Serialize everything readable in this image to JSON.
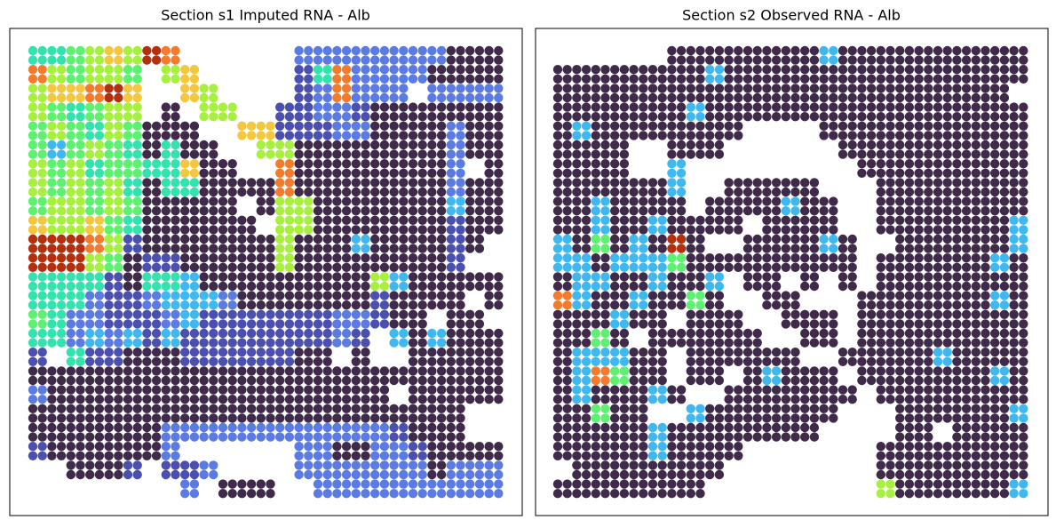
{
  "chart_data": [
    {
      "type": "scatter",
      "title": "Section s1 Imputed RNA - Alb",
      "colormap": [
        "#3f2a4a",
        "#4b4fae",
        "#5b7be3",
        "#3fb8f0",
        "#33e3ae",
        "#5ef171",
        "#a8f03f",
        "#f3c73f",
        "#f47a2c",
        "#b3300e"
      ],
      "values": [
        [
          4,
          4,
          5,
          6,
          7,
          6,
          9,
          8,
          null,
          null,
          null,
          null,
          null,
          null,
          2,
          2,
          2,
          2,
          2,
          2,
          2,
          2,
          0,
          0,
          0
        ],
        [
          8,
          6,
          5,
          6,
          6,
          5,
          null,
          6,
          7,
          null,
          null,
          null,
          null,
          null,
          1,
          4,
          8,
          2,
          2,
          2,
          2,
          0,
          0,
          0,
          0
        ],
        [
          6,
          7,
          7,
          8,
          9,
          7,
          null,
          null,
          7,
          6,
          null,
          null,
          null,
          null,
          1,
          2,
          8,
          2,
          2,
          2,
          null,
          2,
          2,
          2,
          2
        ],
        [
          6,
          5,
          4,
          5,
          6,
          6,
          null,
          0,
          null,
          6,
          6,
          null,
          null,
          1,
          1,
          2,
          2,
          1,
          0,
          0,
          0,
          0,
          0,
          0,
          0
        ],
        [
          5,
          6,
          5,
          4,
          6,
          5,
          0,
          0,
          0,
          null,
          null,
          7,
          7,
          1,
          1,
          1,
          2,
          2,
          0,
          0,
          0,
          0,
          2,
          0,
          0
        ],
        [
          5,
          3,
          5,
          6,
          5,
          4,
          0,
          4,
          0,
          0,
          null,
          null,
          6,
          6,
          0,
          0,
          0,
          0,
          0,
          0,
          0,
          0,
          2,
          0,
          0
        ],
        [
          6,
          5,
          6,
          4,
          5,
          5,
          4,
          4,
          7,
          0,
          0,
          null,
          null,
          8,
          0,
          0,
          0,
          0,
          0,
          0,
          0,
          0,
          2,
          null,
          0
        ],
        [
          6,
          5,
          6,
          5,
          6,
          4,
          0,
          4,
          4,
          0,
          0,
          0,
          0,
          8,
          0,
          0,
          0,
          0,
          0,
          0,
          0,
          0,
          2,
          0,
          0
        ],
        [
          5,
          6,
          6,
          5,
          6,
          5,
          0,
          0,
          0,
          0,
          0,
          null,
          0,
          6,
          6,
          0,
          0,
          0,
          0,
          0,
          0,
          0,
          3,
          0,
          0
        ],
        [
          7,
          6,
          6,
          7,
          5,
          4,
          0,
          0,
          0,
          0,
          0,
          0,
          null,
          6,
          6,
          0,
          0,
          0,
          0,
          0,
          0,
          0,
          1,
          0,
          0
        ],
        [
          9,
          9,
          9,
          8,
          6,
          1,
          0,
          0,
          0,
          0,
          0,
          0,
          0,
          6,
          0,
          0,
          0,
          3,
          0,
          0,
          0,
          0,
          1,
          0,
          null
        ],
        [
          9,
          9,
          9,
          6,
          5,
          0,
          1,
          1,
          0,
          0,
          0,
          0,
          0,
          6,
          0,
          0,
          0,
          0,
          0,
          0,
          0,
          0,
          1,
          null,
          null
        ],
        [
          4,
          4,
          4,
          4,
          1,
          0,
          4,
          4,
          3,
          0,
          0,
          0,
          0,
          0,
          0,
          0,
          0,
          0,
          6,
          3,
          0,
          0,
          0,
          0,
          0
        ],
        [
          4,
          4,
          4,
          2,
          1,
          1,
          2,
          3,
          3,
          3,
          2,
          0,
          0,
          0,
          0,
          0,
          0,
          0,
          1,
          0,
          0,
          0,
          0,
          null,
          0
        ],
        [
          5,
          4,
          2,
          2,
          1,
          1,
          1,
          2,
          3,
          1,
          1,
          1,
          1,
          1,
          1,
          1,
          2,
          2,
          1,
          0,
          0,
          null,
          0,
          0,
          null
        ],
        [
          4,
          4,
          2,
          3,
          2,
          3,
          1,
          3,
          1,
          1,
          1,
          1,
          1,
          1,
          1,
          1,
          2,
          1,
          null,
          3,
          0,
          3,
          0,
          0,
          0
        ],
        [
          1,
          null,
          4,
          1,
          1,
          0,
          0,
          0,
          1,
          1,
          1,
          1,
          1,
          1,
          0,
          0,
          null,
          0,
          null,
          null,
          0,
          0,
          0,
          0,
          0
        ],
        [
          0,
          0,
          0,
          0,
          0,
          0,
          0,
          0,
          0,
          0,
          0,
          0,
          0,
          0,
          0,
          0,
          0,
          0,
          0,
          0,
          0,
          0,
          0,
          0,
          0
        ],
        [
          2,
          0,
          0,
          0,
          0,
          0,
          0,
          0,
          0,
          0,
          0,
          0,
          0,
          0,
          0,
          0,
          0,
          0,
          0,
          null,
          0,
          0,
          0,
          0,
          0
        ],
        [
          0,
          0,
          0,
          0,
          0,
          0,
          0,
          0,
          0,
          0,
          0,
          0,
          0,
          0,
          0,
          0,
          0,
          0,
          0,
          0,
          0,
          0,
          0,
          null,
          null
        ],
        [
          0,
          0,
          0,
          0,
          0,
          0,
          0,
          2,
          2,
          2,
          2,
          2,
          2,
          2,
          2,
          2,
          2,
          2,
          2,
          1,
          0,
          0,
          0,
          null,
          null
        ],
        [
          1,
          0,
          0,
          0,
          0,
          0,
          0,
          2,
          null,
          null,
          null,
          null,
          null,
          null,
          2,
          2,
          0,
          0,
          2,
          2,
          1,
          0,
          0,
          0,
          0
        ],
        [
          null,
          null,
          0,
          0,
          0,
          1,
          null,
          1,
          1,
          2,
          null,
          null,
          null,
          null,
          2,
          2,
          2,
          2,
          2,
          2,
          2,
          0,
          2,
          2,
          2
        ],
        [
          null,
          null,
          null,
          null,
          null,
          null,
          null,
          null,
          2,
          null,
          0,
          0,
          0,
          null,
          null,
          2,
          2,
          2,
          2,
          2,
          2,
          2,
          2,
          2,
          2
        ]
      ]
    },
    {
      "type": "scatter",
      "title": "Section s2 Observed RNA - Alb",
      "colormap": [
        "#3f2a4a",
        "#4b4fae",
        "#5b7be3",
        "#3fb8f0",
        "#33e3ae",
        "#5ef171",
        "#a8f03f",
        "#f3c73f",
        "#f47a2c",
        "#b3300e"
      ],
      "values": [
        [
          null,
          null,
          null,
          null,
          null,
          null,
          0,
          0,
          0,
          0,
          0,
          0,
          0,
          0,
          3,
          0,
          0,
          0,
          0,
          0,
          0,
          0,
          0,
          0,
          0
        ],
        [
          0,
          0,
          0,
          0,
          0,
          0,
          0,
          0,
          3,
          0,
          0,
          0,
          0,
          0,
          0,
          0,
          0,
          0,
          0,
          0,
          0,
          0,
          0,
          0,
          0
        ],
        [
          0,
          0,
          0,
          0,
          0,
          0,
          0,
          0,
          0,
          0,
          0,
          0,
          0,
          0,
          0,
          0,
          0,
          0,
          0,
          0,
          0,
          0,
          0,
          0,
          null
        ],
        [
          0,
          0,
          0,
          0,
          0,
          0,
          0,
          3,
          0,
          0,
          0,
          0,
          0,
          0,
          0,
          0,
          0,
          0,
          0,
          0,
          0,
          0,
          0,
          0,
          0
        ],
        [
          0,
          3,
          0,
          0,
          0,
          0,
          0,
          0,
          0,
          0,
          null,
          null,
          null,
          null,
          0,
          0,
          0,
          0,
          0,
          0,
          0,
          0,
          0,
          0,
          0
        ],
        [
          0,
          0,
          0,
          0,
          null,
          null,
          0,
          0,
          0,
          null,
          null,
          null,
          null,
          null,
          null,
          0,
          0,
          0,
          0,
          0,
          0,
          0,
          0,
          0,
          0
        ],
        [
          0,
          0,
          0,
          0,
          null,
          null,
          3,
          null,
          null,
          null,
          null,
          null,
          null,
          null,
          null,
          null,
          0,
          0,
          0,
          0,
          0,
          0,
          0,
          0,
          0
        ],
        [
          0,
          0,
          0,
          0,
          0,
          0,
          3,
          null,
          null,
          0,
          0,
          0,
          0,
          0,
          null,
          null,
          null,
          0,
          0,
          0,
          0,
          0,
          0,
          0,
          0
        ],
        [
          0,
          0,
          3,
          0,
          0,
          0,
          0,
          null,
          0,
          0,
          0,
          0,
          3,
          0,
          0,
          null,
          null,
          0,
          0,
          0,
          0,
          0,
          0,
          0,
          0
        ],
        [
          0,
          0,
          3,
          0,
          0,
          3,
          0,
          0,
          0,
          0,
          null,
          0,
          0,
          0,
          0,
          null,
          null,
          0,
          0,
          0,
          0,
          0,
          0,
          0,
          3
        ],
        [
          3,
          0,
          5,
          0,
          3,
          0,
          9,
          0,
          null,
          null,
          0,
          0,
          0,
          0,
          3,
          0,
          null,
          null,
          0,
          0,
          0,
          0,
          0,
          0,
          3
        ],
        [
          3,
          3,
          0,
          3,
          3,
          3,
          5,
          0,
          0,
          0,
          0,
          0,
          0,
          0,
          0,
          0,
          null,
          0,
          0,
          0,
          0,
          0,
          0,
          3,
          0
        ],
        [
          0,
          3,
          3,
          0,
          0,
          3,
          0,
          0,
          3,
          null,
          0,
          0,
          null,
          0,
          null,
          0,
          null,
          0,
          0,
          0,
          0,
          0,
          0,
          0,
          0
        ],
        [
          8,
          3,
          0,
          0,
          3,
          0,
          0,
          5,
          0,
          null,
          null,
          0,
          0,
          null,
          null,
          null,
          0,
          0,
          0,
          0,
          0,
          0,
          0,
          3,
          0
        ],
        [
          0,
          0,
          0,
          3,
          0,
          0,
          null,
          0,
          0,
          0,
          null,
          null,
          0,
          0,
          0,
          null,
          0,
          0,
          0,
          0,
          0,
          0,
          0,
          0,
          0
        ],
        [
          0,
          0,
          5,
          0,
          null,
          0,
          0,
          0,
          0,
          0,
          0,
          null,
          null,
          0,
          0,
          null,
          0,
          0,
          0,
          0,
          0,
          0,
          0,
          0,
          0
        ],
        [
          0,
          3,
          3,
          3,
          0,
          0,
          null,
          0,
          0,
          0,
          0,
          0,
          0,
          null,
          null,
          0,
          0,
          0,
          0,
          0,
          3,
          0,
          0,
          0,
          0
        ],
        [
          0,
          3,
          8,
          5,
          0,
          0,
          null,
          0,
          0,
          null,
          0,
          3,
          0,
          0,
          0,
          null,
          0,
          0,
          0,
          0,
          0,
          0,
          0,
          3,
          0
        ],
        [
          0,
          3,
          0,
          0,
          0,
          3,
          0,
          null,
          null,
          0,
          0,
          0,
          0,
          0,
          0,
          0,
          null,
          0,
          0,
          0,
          0,
          0,
          0,
          0,
          0
        ],
        [
          0,
          0,
          5,
          0,
          0,
          null,
          null,
          3,
          0,
          0,
          0,
          0,
          0,
          0,
          0,
          null,
          null,
          null,
          0,
          0,
          0,
          0,
          0,
          0,
          3
        ],
        [
          0,
          0,
          0,
          0,
          0,
          3,
          0,
          0,
          0,
          0,
          0,
          0,
          0,
          0,
          null,
          null,
          null,
          null,
          0,
          0,
          null,
          0,
          0,
          0,
          0
        ],
        [
          0,
          0,
          0,
          0,
          0,
          3,
          0,
          0,
          0,
          0,
          null,
          null,
          null,
          null,
          null,
          null,
          null,
          0,
          0,
          0,
          0,
          0,
          0,
          0,
          0
        ],
        [
          null,
          0,
          0,
          0,
          0,
          0,
          0,
          0,
          0,
          null,
          null,
          null,
          null,
          null,
          null,
          null,
          null,
          0,
          0,
          0,
          0,
          0,
          0,
          0,
          0
        ],
        [
          0,
          0,
          0,
          0,
          0,
          0,
          0,
          0,
          null,
          null,
          null,
          null,
          null,
          null,
          null,
          null,
          null,
          6,
          0,
          0,
          0,
          0,
          0,
          0,
          3
        ]
      ]
    }
  ]
}
